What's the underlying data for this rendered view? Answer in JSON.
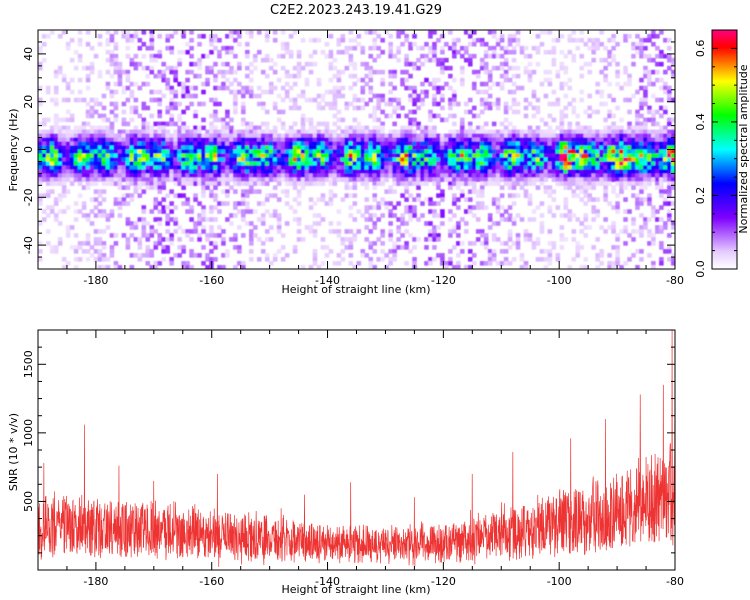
{
  "title": "C2E2.2023.243.19.41.G29",
  "chart_data": [
    {
      "type": "heatmap",
      "xlabel": "Height of straight line (km)",
      "ylabel": "Frequency (Hz)",
      "xlim": [
        -190,
        -80
      ],
      "ylim": [
        -50,
        50
      ],
      "xticks": [
        -180,
        -160,
        -140,
        -120,
        -100,
        -80
      ],
      "yticks": [
        -40,
        -20,
        0,
        20,
        40
      ],
      "colorbar": {
        "label": "Normalized spectral amplitude",
        "range": [
          0.0,
          0.65
        ],
        "ticks": [
          0.0,
          0.2,
          0.4,
          0.6
        ],
        "colors": [
          "#ffffff",
          "#e6ccff",
          "#b266ff",
          "#7f00ff",
          "#3c00ff",
          "#0000ff",
          "#0080ff",
          "#00ffff",
          "#00ff80",
          "#00ff00",
          "#80ff00",
          "#ffff00",
          "#ff8000",
          "#ff0000",
          "#ff0080"
        ]
      },
      "band": {
        "center_hz": -3,
        "halfwidth_hz": 7
      },
      "grid": false
    },
    {
      "type": "line",
      "xlabel": "Height of straight line (km)",
      "ylabel": "SNR (10 * v/v)",
      "xlim": [
        -190,
        -80
      ],
      "ylim": [
        0,
        1750
      ],
      "xticks": [
        -180,
        -160,
        -140,
        -120,
        -100,
        -80
      ],
      "yticks": [
        500,
        1000,
        1500
      ],
      "color": "#ee3333",
      "grid": false,
      "envelope": {
        "x": [
          -190,
          -180,
          -170,
          -160,
          -150,
          -140,
          -130,
          -120,
          -110,
          -100,
          -90,
          -85,
          -80
        ],
        "y": [
          320,
          300,
          290,
          260,
          230,
          200,
          180,
          190,
          260,
          340,
          420,
          500,
          560
        ]
      },
      "peaks": [
        {
          "x": -189,
          "y": 780
        },
        {
          "x": -182,
          "y": 1060
        },
        {
          "x": -176,
          "y": 760
        },
        {
          "x": -170,
          "y": 650
        },
        {
          "x": -159,
          "y": 700
        },
        {
          "x": -148,
          "y": 450
        },
        {
          "x": -144,
          "y": 550
        },
        {
          "x": -136,
          "y": 640
        },
        {
          "x": -125,
          "y": 530
        },
        {
          "x": -115,
          "y": 700
        },
        {
          "x": -108,
          "y": 860
        },
        {
          "x": -98,
          "y": 960
        },
        {
          "x": -92,
          "y": 1100
        },
        {
          "x": -86,
          "y": 1280
        },
        {
          "x": -82,
          "y": 1350
        },
        {
          "x": -80.5,
          "y": 1750
        },
        {
          "x": -80,
          "y": 1430
        }
      ]
    }
  ]
}
